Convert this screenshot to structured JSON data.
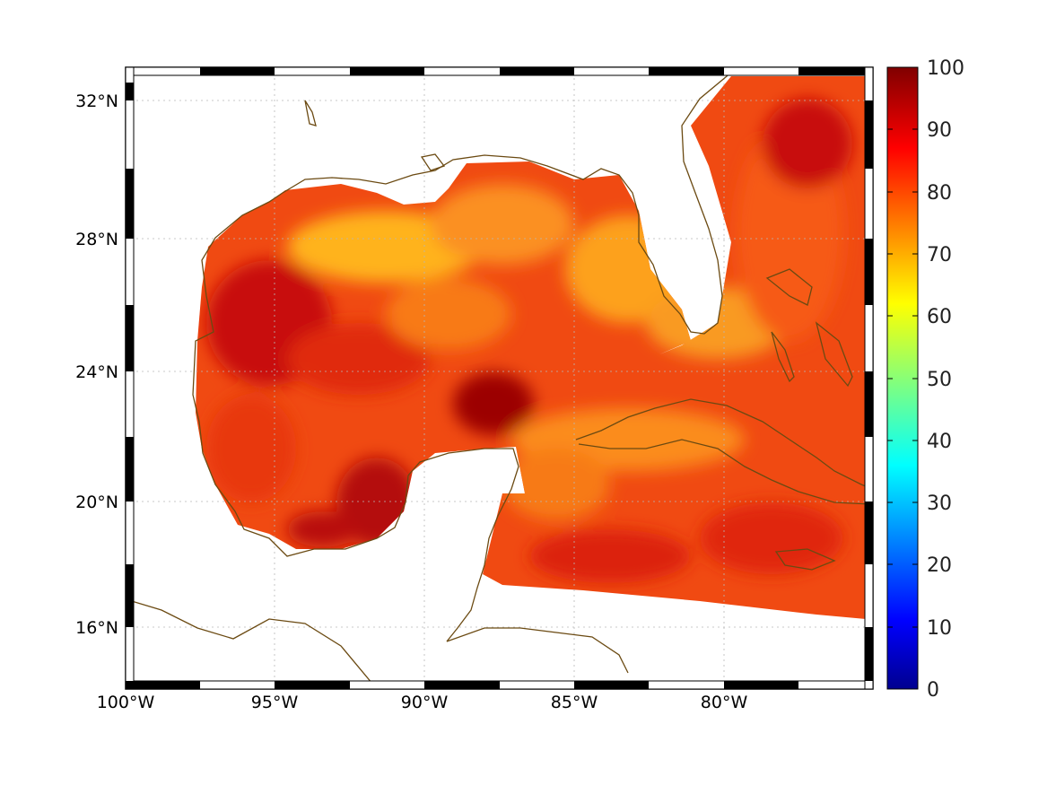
{
  "map": {
    "lat_ticks": [
      "32°N",
      "28°N",
      "24°N",
      "20°N",
      "16°N"
    ],
    "lon_ticks": [
      "100°W",
      "95°W",
      "90°W",
      "85°W",
      "80°W"
    ],
    "lat_values": [
      32,
      28,
      24,
      20,
      16
    ],
    "lon_values": [
      -100,
      -95,
      -90,
      -85,
      -80
    ],
    "extent": {
      "lon": [
        -100,
        -75
      ],
      "lat": [
        14.3,
        33
      ]
    },
    "colors": {
      "coastline": "#6b4a12",
      "frame": "#000000"
    }
  },
  "colorbar": {
    "ticks": [
      "100",
      "90",
      "80",
      "70",
      "60",
      "50",
      "40",
      "30",
      "20",
      "10",
      "0"
    ],
    "values": [
      100,
      90,
      80,
      70,
      60,
      50,
      40,
      30,
      20,
      10,
      0
    ],
    "range": [
      0,
      100
    ],
    "colormap": [
      "#00008f",
      "#0000ff",
      "#00ffff",
      "#ffff00",
      "#ff0000",
      "#800000"
    ]
  }
}
